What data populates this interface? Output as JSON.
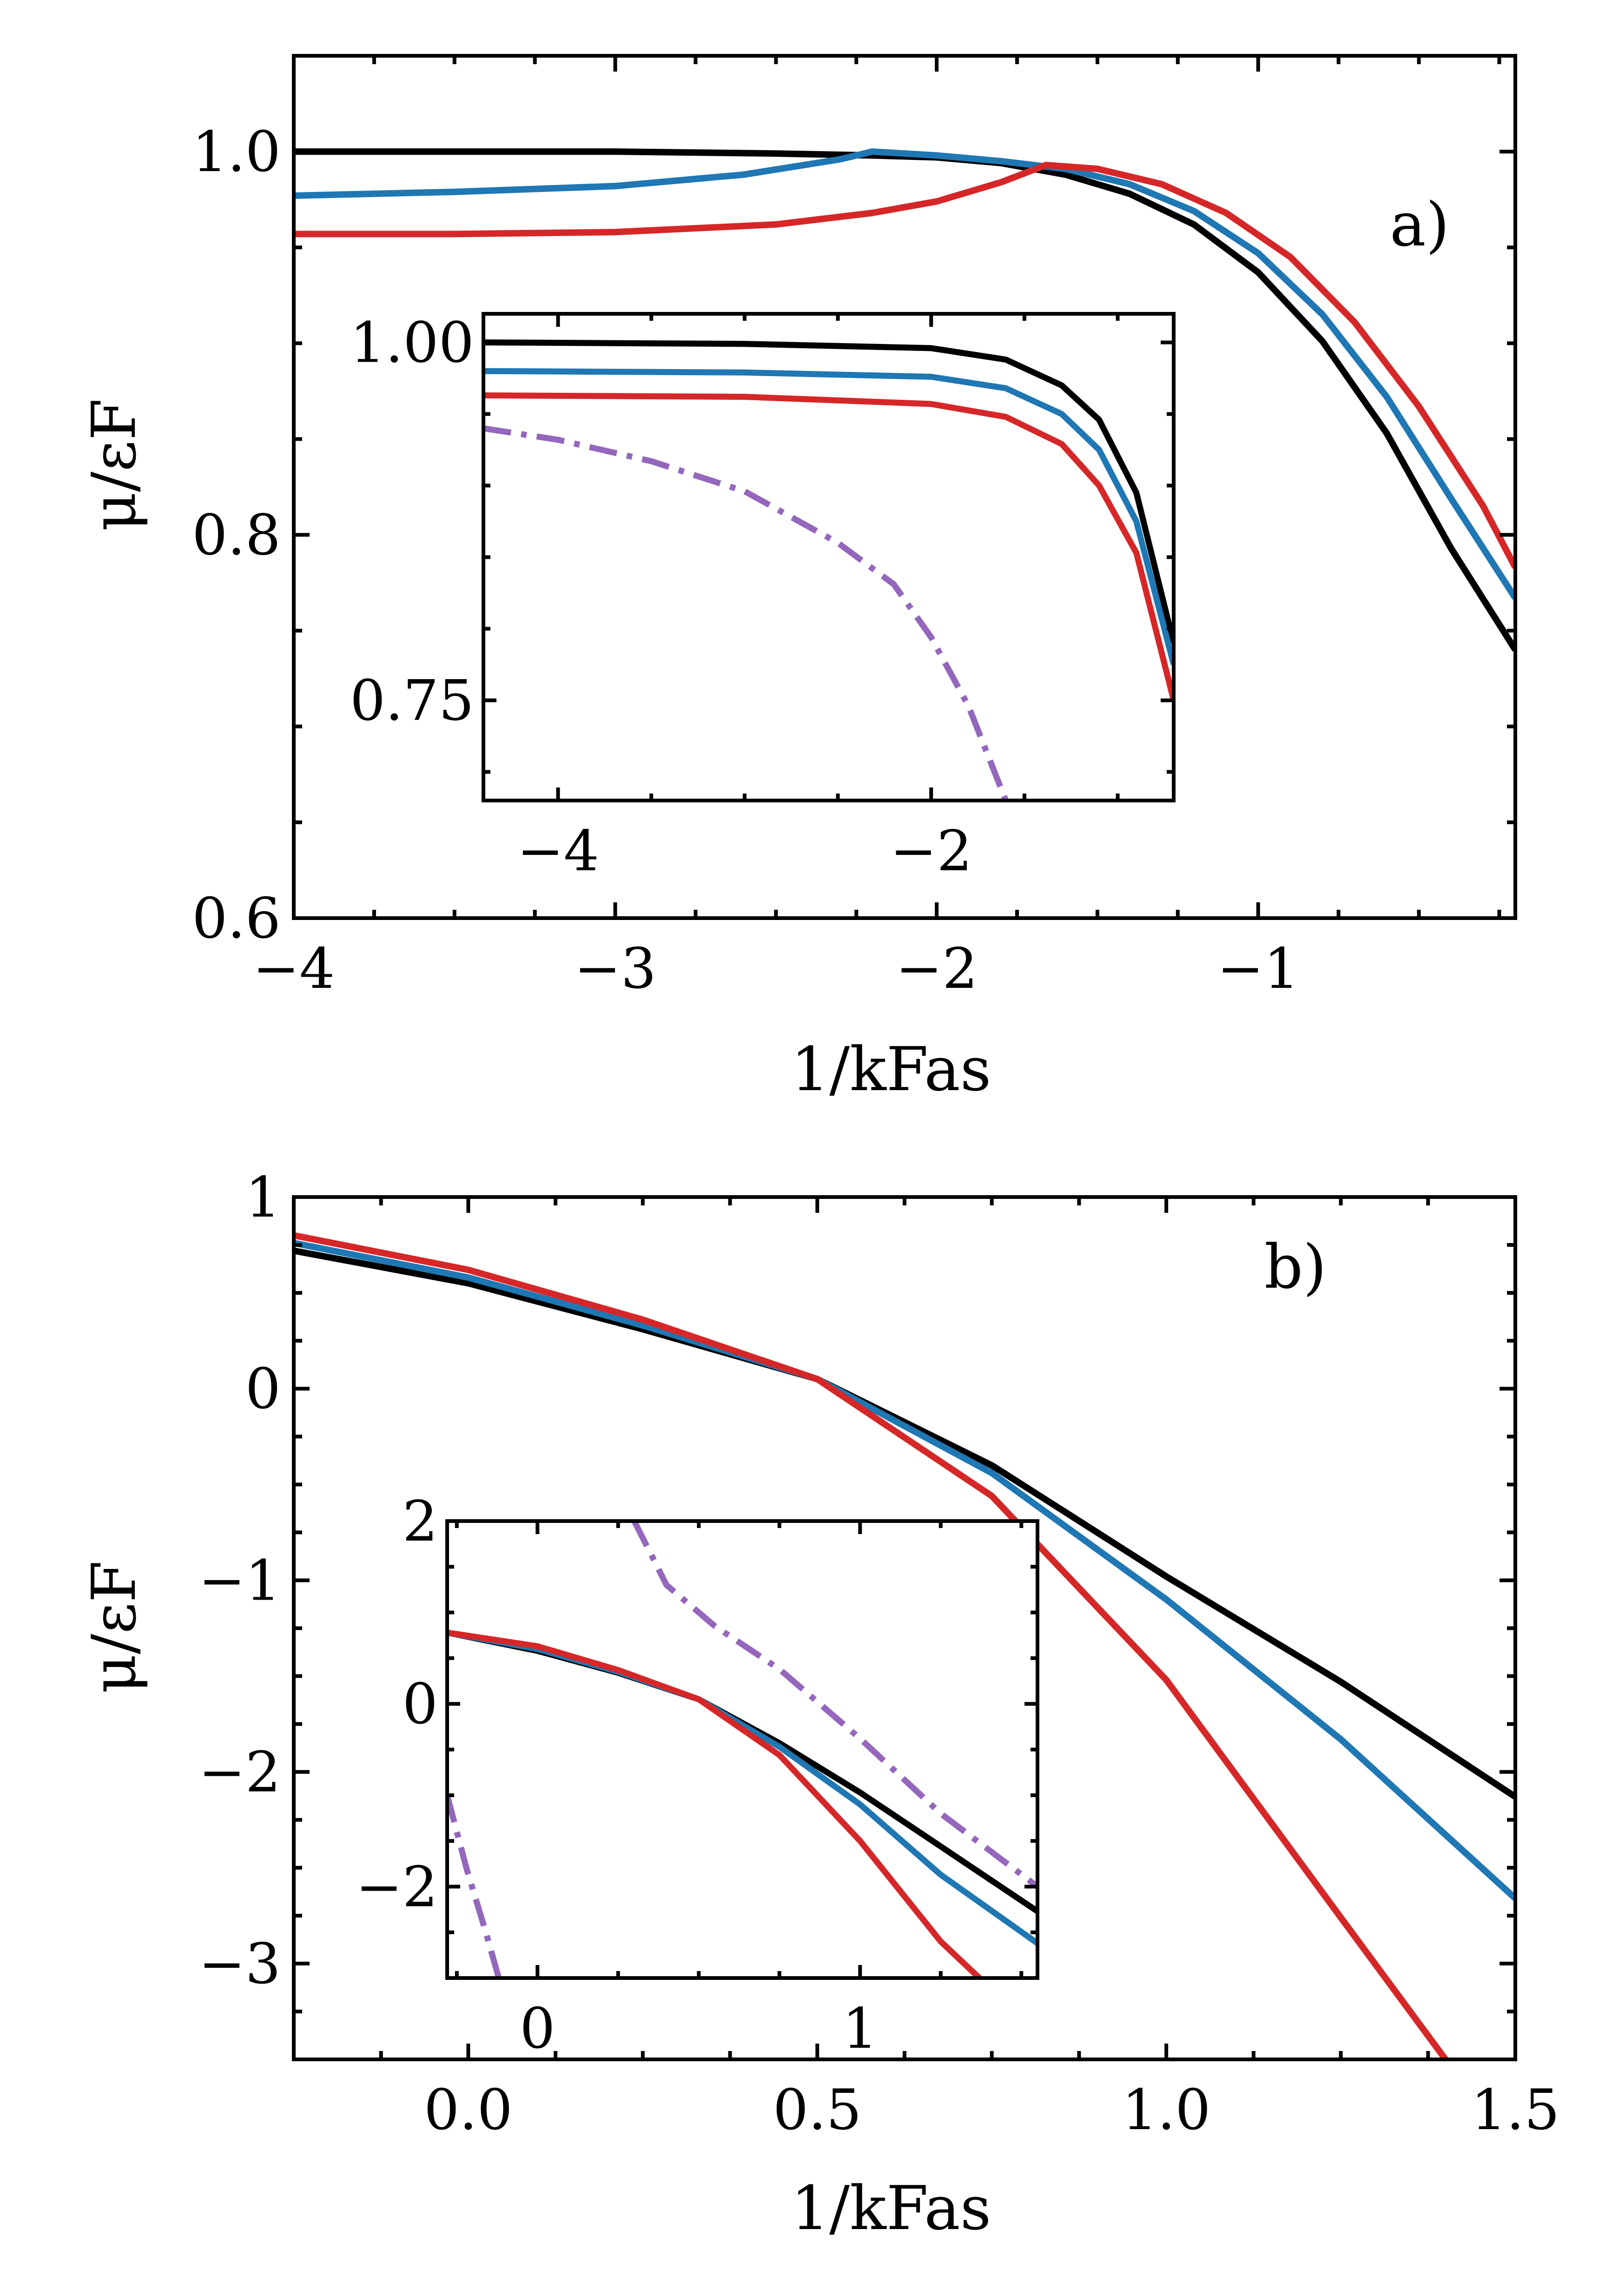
{
  "figure": {
    "x_axis_label": "1/kFas",
    "y_axis_label": "μ/εF"
  },
  "colors": {
    "ref": "#000000",
    "series_b": "#1f77b4",
    "series_c": "#d62728",
    "series_d": "#9467bd"
  },
  "chart_data": [
    {
      "id": "panel_a",
      "type": "line",
      "panel_label": "a)",
      "xlabel": "1/kFas",
      "ylabel": "μ/εF",
      "xlim": [
        -4,
        -0.2
      ],
      "ylim": [
        0.6,
        1.05
      ],
      "xticks": [
        -4,
        -3,
        -2,
        -1
      ],
      "xtick_labels": [
        "−4",
        "−3",
        "−2",
        "−1"
      ],
      "yticks": [
        0.6,
        0.8,
        1.0
      ],
      "ytick_labels": [
        "0.6",
        "0.8",
        "1.0"
      ],
      "series": [
        {
          "name": "black",
          "color": "#000000",
          "x": [
            -4.0,
            -3.0,
            -2.5,
            -2.2,
            -2.0,
            -1.8,
            -1.6,
            -1.4,
            -1.2,
            -1.0,
            -0.8,
            -0.6,
            -0.4,
            -0.2
          ],
          "y": [
            1.0,
            1.0,
            0.999,
            0.998,
            0.997,
            0.994,
            0.988,
            0.978,
            0.962,
            0.937,
            0.901,
            0.853,
            0.793,
            0.74
          ]
        },
        {
          "name": "blue",
          "color": "#1f77b4",
          "x": [
            -4.0,
            -3.5,
            -3.0,
            -2.6,
            -2.3,
            -2.2,
            -2.0,
            -1.8,
            -1.6,
            -1.4,
            -1.2,
            -1.0,
            -0.8,
            -0.6,
            -0.4,
            -0.2
          ],
          "y": [
            0.977,
            0.979,
            0.982,
            0.988,
            0.996,
            1.0,
            0.998,
            0.995,
            0.991,
            0.983,
            0.969,
            0.947,
            0.915,
            0.872,
            0.819,
            0.767
          ]
        },
        {
          "name": "red",
          "color": "#d62728",
          "x": [
            -4.0,
            -3.5,
            -3.0,
            -2.5,
            -2.2,
            -2.0,
            -1.8,
            -1.66,
            -1.5,
            -1.3,
            -1.1,
            -0.9,
            -0.7,
            -0.5,
            -0.3,
            -0.2
          ],
          "y": [
            0.957,
            0.957,
            0.958,
            0.962,
            0.968,
            0.974,
            0.984,
            0.993,
            0.991,
            0.983,
            0.968,
            0.945,
            0.911,
            0.867,
            0.815,
            0.783
          ]
        }
      ]
    },
    {
      "id": "panel_a_inset",
      "type": "line",
      "xlim": [
        -4.4,
        -0.7
      ],
      "ylim": [
        0.68,
        1.02
      ],
      "xticks": [
        -4,
        -2
      ],
      "xtick_labels": [
        "−4",
        "−2"
      ],
      "yticks": [
        0.75,
        1.0
      ],
      "ytick_labels": [
        "0.75",
        "1.00"
      ],
      "series": [
        {
          "name": "black",
          "color": "#000000",
          "x": [
            -4.4,
            -3.0,
            -2.0,
            -1.6,
            -1.3,
            -1.1,
            -0.9,
            -0.7
          ],
          "y": [
            1.0,
            0.999,
            0.996,
            0.988,
            0.97,
            0.946,
            0.895,
            0.79
          ]
        },
        {
          "name": "blue",
          "color": "#1f77b4",
          "x": [
            -4.4,
            -3.0,
            -2.0,
            -1.6,
            -1.3,
            -1.1,
            -0.9,
            -0.7
          ],
          "y": [
            0.98,
            0.979,
            0.976,
            0.968,
            0.95,
            0.925,
            0.875,
            0.775
          ]
        },
        {
          "name": "red",
          "color": "#d62728",
          "x": [
            -4.4,
            -3.0,
            -2.0,
            -1.6,
            -1.3,
            -1.1,
            -0.9,
            -0.7
          ],
          "y": [
            0.963,
            0.962,
            0.957,
            0.948,
            0.929,
            0.9,
            0.853,
            0.75
          ]
        },
        {
          "name": "purple",
          "color": "#9467bd",
          "dashed": true,
          "x": [
            -4.4,
            -4.0,
            -3.5,
            -3.0,
            -2.5,
            -2.2,
            -2.0,
            -1.8,
            -1.6
          ],
          "y": [
            0.94,
            0.932,
            0.917,
            0.896,
            0.86,
            0.831,
            0.794,
            0.746,
            0.68
          ]
        }
      ]
    },
    {
      "id": "panel_b",
      "type": "line",
      "panel_label": "b)",
      "xlabel": "1/kFas",
      "ylabel": "μ/εF",
      "xlim": [
        -0.25,
        1.5
      ],
      "ylim": [
        -3.5,
        1.0
      ],
      "xticks": [
        0.0,
        0.5,
        1.0,
        1.5
      ],
      "xtick_labels": [
        "0.0",
        "0.5",
        "1.0",
        "1.5"
      ],
      "yticks": [
        -3,
        -2,
        -1,
        0,
        1
      ],
      "ytick_labels": [
        "−3",
        "−2",
        "−1",
        "0",
        "1"
      ],
      "series": [
        {
          "name": "black",
          "color": "#000000",
          "x": [
            -0.25,
            0.0,
            0.25,
            0.5,
            0.75,
            1.0,
            1.25,
            1.5
          ],
          "y": [
            0.72,
            0.55,
            0.31,
            0.05,
            -0.4,
            -0.98,
            -1.53,
            -2.13
          ]
        },
        {
          "name": "blue",
          "color": "#1f77b4",
          "x": [
            -0.25,
            0.0,
            0.25,
            0.5,
            0.75,
            1.0,
            1.25,
            1.5
          ],
          "y": [
            0.76,
            0.58,
            0.33,
            0.05,
            -0.44,
            -1.1,
            -1.83,
            -2.66
          ]
        },
        {
          "name": "red",
          "color": "#d62728",
          "x": [
            -0.25,
            0.0,
            0.25,
            0.5,
            0.75,
            1.0,
            1.25,
            1.4
          ],
          "y": [
            0.8,
            0.62,
            0.36,
            0.05,
            -0.56,
            -1.52,
            -2.76,
            -3.5
          ]
        }
      ]
    },
    {
      "id": "panel_b_inset",
      "type": "line",
      "xlim": [
        -0.28,
        1.55
      ],
      "ylim": [
        -3.0,
        2.0
      ],
      "xticks": [
        0,
        1
      ],
      "xtick_labels": [
        "0",
        "1"
      ],
      "yticks": [
        -2,
        0,
        2
      ],
      "ytick_labels": [
        "−2",
        "0",
        "2"
      ],
      "series": [
        {
          "name": "black",
          "color": "#000000",
          "x": [
            -0.28,
            0.0,
            0.25,
            0.5,
            0.75,
            1.0,
            1.25,
            1.55
          ],
          "y": [
            0.78,
            0.58,
            0.34,
            0.05,
            -0.43,
            -0.97,
            -1.56,
            -2.27
          ]
        },
        {
          "name": "blue",
          "color": "#1f77b4",
          "x": [
            -0.28,
            0.0,
            0.25,
            0.5,
            0.75,
            1.0,
            1.25,
            1.55
          ],
          "y": [
            0.78,
            0.6,
            0.35,
            0.05,
            -0.47,
            -1.1,
            -1.87,
            -2.62
          ]
        },
        {
          "name": "red",
          "color": "#d62728",
          "x": [
            -0.28,
            0.0,
            0.25,
            0.5,
            0.75,
            1.0,
            1.25,
            1.37
          ],
          "y": [
            0.78,
            0.63,
            0.37,
            0.05,
            -0.56,
            -1.5,
            -2.6,
            -3.0
          ]
        },
        {
          "name": "purple-upper",
          "color": "#9467bd",
          "dashed": true,
          "x": [
            0.3,
            0.4,
            0.55,
            0.75,
            1.0,
            1.25,
            1.55
          ],
          "y": [
            2.0,
            1.3,
            0.85,
            0.38,
            -0.38,
            -1.2,
            -2.0
          ]
        },
        {
          "name": "purple-lower",
          "color": "#9467bd",
          "dashed": true,
          "x": [
            -0.28,
            -0.22,
            -0.16,
            -0.12
          ],
          "y": [
            -1.0,
            -1.8,
            -2.5,
            -3.0
          ]
        }
      ]
    }
  ]
}
